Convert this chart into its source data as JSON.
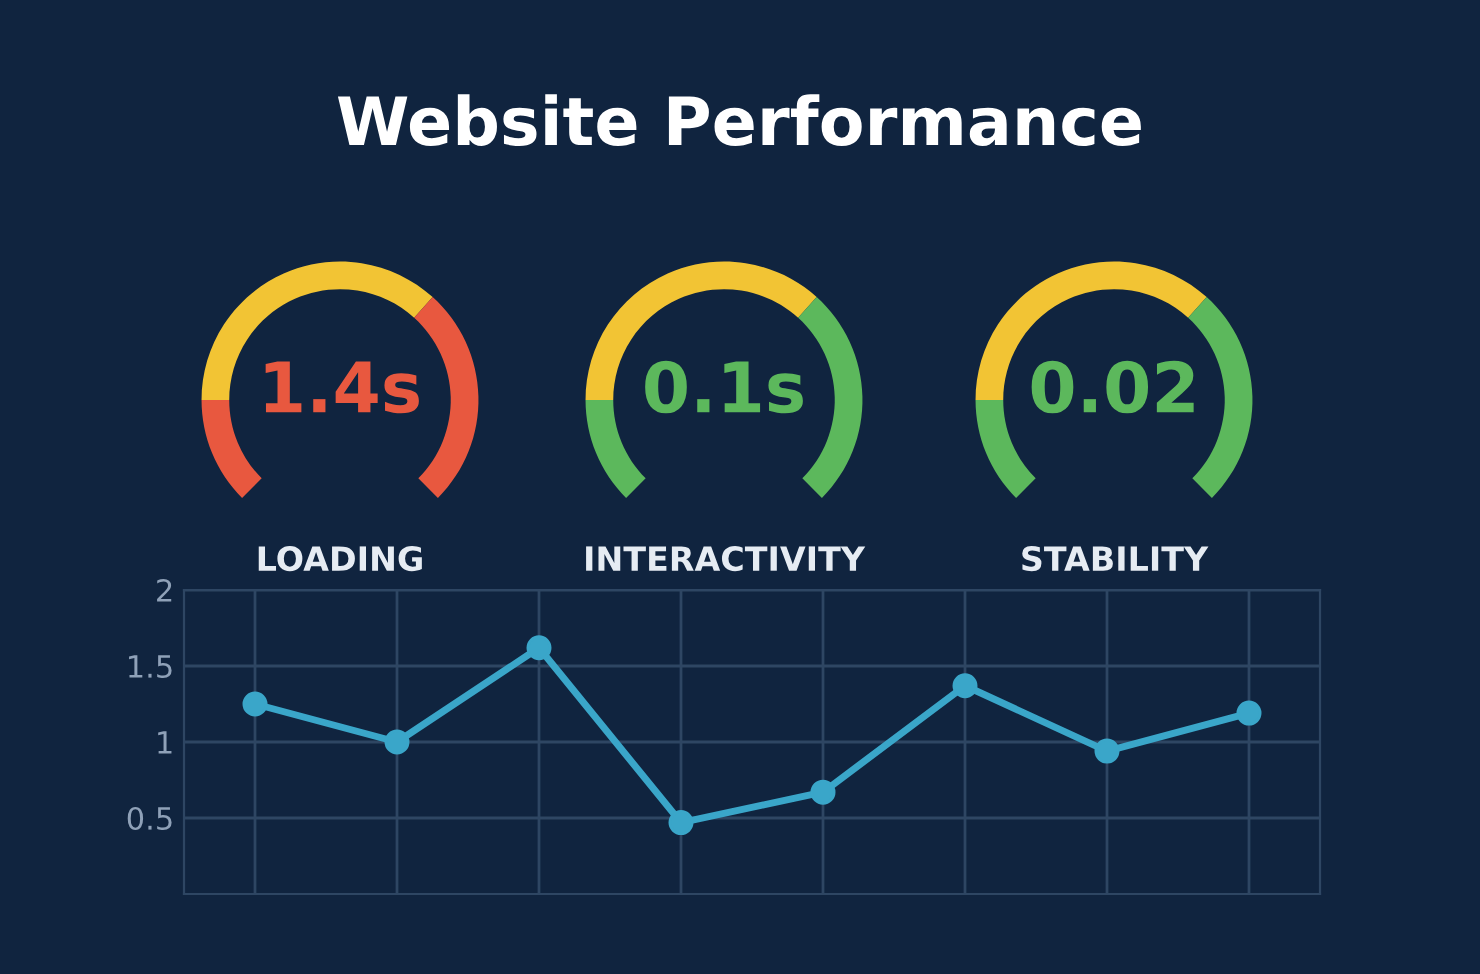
{
  "chart_data": [
    {
      "type": "other",
      "title": "Website Performance",
      "annotations": [
        "1.4s"
      ],
      "xlabel": "LOADING",
      "color": "#e8583f",
      "colors": [
        "#e8583f",
        "#f2c434",
        "#e8583f"
      ]
    },
    {
      "type": "other",
      "annotations": [
        "0.1s"
      ],
      "xlabel": "INTERACTIVITY",
      "color": "#5cb85c",
      "colors": [
        "#5cb85c",
        "#f2c434",
        "#5cb85c"
      ]
    },
    {
      "type": "other",
      "annotations": [
        "0.02"
      ],
      "xlabel": "STABILITY",
      "color": "#5cb85c",
      "colors": [
        "#5cb85c",
        "#f2c434",
        "#5cb85c"
      ]
    },
    {
      "type": "line",
      "categories": [
        null,
        null,
        null,
        null,
        null,
        null,
        null,
        null
      ],
      "series": [
        {
          "color": "#3aa6c9",
          "values": [
            1.25,
            1.0,
            1.62,
            0.47,
            0.67,
            1.37,
            0.94,
            1.19
          ]
        }
      ],
      "ylim": [
        0,
        2
      ],
      "yticks": [
        0.5,
        1,
        1.5,
        2
      ],
      "grid": true,
      "marker": "circle",
      "line_style": "solid"
    }
  ]
}
